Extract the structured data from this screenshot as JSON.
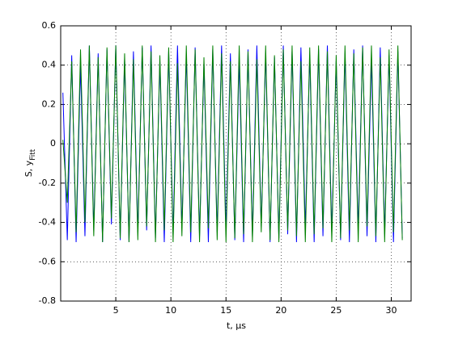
{
  "chart_data": {
    "type": "line",
    "xlabel": "t, µs",
    "ylabel": "S, y",
    "ylabel_sub": "Fitt",
    "xlim": [
      0,
      31.8
    ],
    "ylim": [
      -0.8,
      0.6
    ],
    "xticks": [
      5,
      10,
      15,
      20,
      25,
      30
    ],
    "yticks": [
      -0.8,
      -0.6,
      -0.4,
      -0.2,
      0,
      0.2,
      0.4,
      0.6
    ],
    "grid": true,
    "x": [
      0.2,
      0.6,
      1,
      1.4,
      1.8,
      2.2,
      2.6,
      3,
      3.4,
      3.8,
      4.2,
      4.6,
      5,
      5.4,
      5.8,
      6.2,
      6.6,
      7,
      7.4,
      7.8,
      8.2,
      8.6,
      9,
      9.4,
      9.8,
      10.2,
      10.6,
      11,
      11.4,
      11.8,
      12.2,
      12.6,
      13,
      13.4,
      13.8,
      14.2,
      14.6,
      15,
      15.4,
      15.8,
      16.2,
      16.6,
      17,
      17.4,
      17.8,
      18.2,
      18.6,
      19,
      19.4,
      19.8,
      20.2,
      20.6,
      21,
      21.4,
      21.8,
      22.2,
      22.6,
      23,
      23.4,
      23.8,
      24.2,
      24.6,
      25,
      25.4,
      25.8,
      26.2,
      26.6,
      27,
      27.4,
      27.8,
      28.2,
      28.6,
      29,
      29.4,
      29.8,
      30.2,
      30.6,
      31
    ],
    "series": [
      {
        "color": "#0000ff",
        "values": [
          0.26,
          -0.49,
          0.45,
          -0.5,
          0.4,
          -0.47,
          0.5,
          -0.44,
          0.46,
          -0.5,
          0.48,
          -0.41,
          0.5,
          -0.49,
          0.43,
          -0.5,
          0.47,
          -0.45,
          0.49,
          -0.44,
          0.5,
          -0.48,
          0.42,
          -0.5,
          0.47,
          -0.46,
          0.5,
          -0.43,
          0.45,
          -0.5,
          0.49,
          -0.47,
          0.41,
          -0.5,
          0.48,
          -0.45,
          0.5,
          -0.44,
          0.46,
          -0.49,
          0.43,
          -0.5,
          0.48,
          -0.47,
          0.5,
          -0.42,
          0.46,
          -0.5,
          0.44,
          -0.48,
          0.5,
          -0.46,
          0.47,
          -0.5,
          0.49,
          -0.43,
          0.45,
          -0.5,
          0.48,
          -0.47,
          0.5,
          -0.45,
          0.42,
          -0.49,
          0.46,
          -0.5,
          0.48,
          -0.44,
          0.5,
          -0.47,
          0.43,
          -0.5,
          0.49,
          -0.46,
          0.45,
          -0.5,
          0.47,
          -0.48
        ]
      },
      {
        "color": "#008000",
        "values": [
          0.02,
          -0.3,
          0.42,
          -0.45,
          0.48,
          -0.4,
          0.5,
          -0.47,
          0.44,
          -0.5,
          0.49,
          -0.38,
          0.5,
          -0.48,
          0.46,
          -0.5,
          0.43,
          -0.49,
          0.5,
          -0.42,
          0.47,
          -0.5,
          0.45,
          -0.44,
          0.49,
          -0.5,
          0.41,
          -0.47,
          0.5,
          -0.45,
          0.48,
          -0.5,
          0.44,
          -0.43,
          0.5,
          -0.49,
          0.46,
          -0.5,
          0.42,
          -0.48,
          0.5,
          -0.46,
          0.47,
          -0.5,
          0.43,
          -0.45,
          0.5,
          -0.49,
          0.45,
          -0.5,
          0.48,
          -0.44,
          0.5,
          -0.47,
          0.42,
          -0.5,
          0.49,
          -0.46,
          0.5,
          -0.43,
          0.47,
          -0.5,
          0.45,
          -0.48,
          0.5,
          -0.44,
          0.46,
          -0.5,
          0.49,
          -0.42,
          0.5,
          -0.47,
          0.44,
          -0.5,
          0.48,
          -0.45,
          0.5,
          -0.49
        ]
      }
    ]
  }
}
